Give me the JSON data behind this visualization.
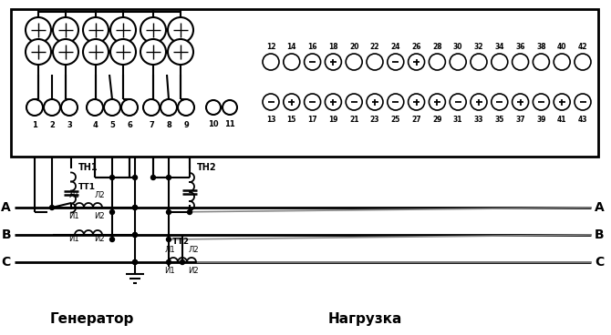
{
  "bg_color": "#ffffff",
  "line_color": "#000000",
  "gray_color": "#888888",
  "generator_label": "Генератор",
  "load_label": "Нагрузка",
  "top_row_numbers": [
    "12",
    "14",
    "16",
    "18",
    "20",
    "22",
    "24",
    "26",
    "28",
    "30",
    "32",
    "34",
    "36",
    "38",
    "40",
    "42"
  ],
  "top_row_symbols": [
    "",
    "",
    "-",
    "+",
    "",
    "",
    "-",
    "+",
    "",
    "",
    "",
    "",
    "",
    "",
    "",
    ""
  ],
  "bot_row_numbers": [
    "13",
    "15",
    "17",
    "19",
    "21",
    "23",
    "25",
    "27",
    "29",
    "31",
    "33",
    "35",
    "37",
    "39",
    "41",
    "43"
  ],
  "bot_row_symbols": [
    "-",
    "+",
    "-",
    "+",
    "-",
    "+",
    "-",
    "+",
    "+",
    "-",
    "+",
    "-",
    "+",
    "-",
    "+",
    "-"
  ],
  "left_terminals": [
    "1",
    "2",
    "3",
    "4",
    "5",
    "6",
    "7",
    "8",
    "9"
  ],
  "TN1": "TH1",
  "TN2": "TH2",
  "TT1": "TT1",
  "TT2": "TT2",
  "L1": "Л1",
  "L2": "Л2",
  "I1": "И1",
  "I2": "И2"
}
